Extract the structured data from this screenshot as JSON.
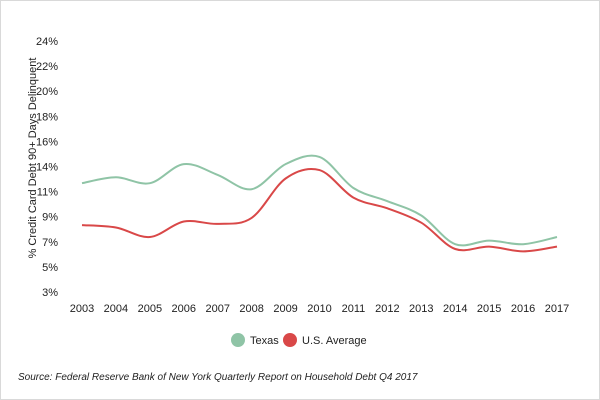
{
  "chart_data": {
    "type": "line",
    "x": [
      "2003",
      "2004",
      "2005",
      "2006",
      "2007",
      "2008",
      "2009",
      "2010",
      "2011",
      "2012",
      "2013",
      "2014",
      "2015",
      "2016",
      "2017"
    ],
    "series": [
      {
        "name": "Texas",
        "color": "#8fc4a6",
        "values": [
          12.1,
          12.6,
          12.1,
          13.7,
          12.8,
          11.6,
          13.7,
          14.3,
          11.7,
          10.6,
          9.4,
          7.0,
          7.3,
          7.0,
          7.6
        ]
      },
      {
        "name": "U.S. Average",
        "color": "#d94848",
        "values": [
          8.6,
          8.4,
          7.6,
          8.9,
          8.7,
          9.2,
          12.5,
          13.2,
          10.9,
          10.0,
          8.8,
          6.6,
          6.8,
          6.4,
          6.8
        ]
      }
    ],
    "yticks": [
      "3%",
      "5%",
      "7%",
      "9%",
      "11%",
      "14%",
      "16%",
      "18%",
      "20%",
      "22%",
      "24%"
    ],
    "ylim": [
      3,
      24
    ],
    "ylabel": "% Credit Card Debt 90+ Days Delinquent",
    "legend_position": "bottom-center",
    "grid": false
  },
  "source": "Source: Federal Reserve Bank of New York Quarterly Report on Household Debt Q4 2017"
}
